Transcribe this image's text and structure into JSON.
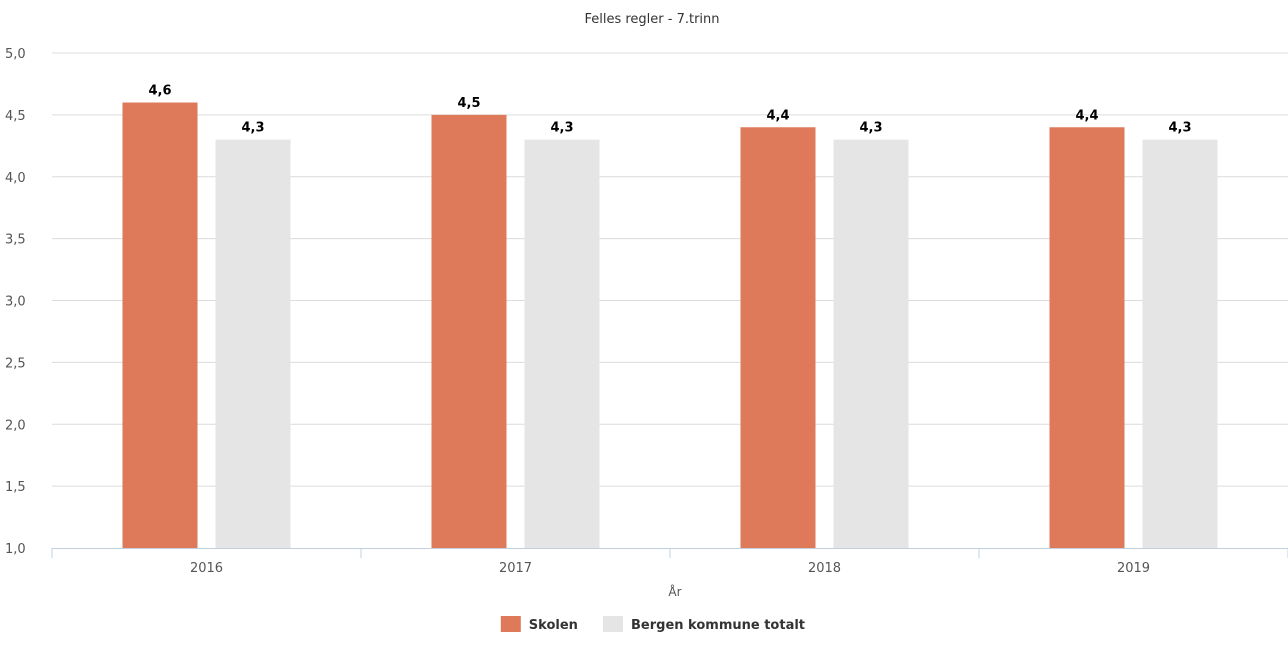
{
  "chart_data": {
    "type": "bar",
    "title": "Felles regler - 7.trinn",
    "xlabel": "År",
    "ylabel": "",
    "categories": [
      "2016",
      "2017",
      "2018",
      "2019"
    ],
    "ylim": [
      1.0,
      5.0
    ],
    "yticks": [
      "1,0",
      "1,5",
      "2,0",
      "2,5",
      "3,0",
      "3,5",
      "4,0",
      "4,5",
      "5,0"
    ],
    "grid": true,
    "legend_position": "bottom",
    "series": [
      {
        "name": "Skolen",
        "color": "#de7a5a",
        "values": [
          4.6,
          4.5,
          4.4,
          4.4
        ],
        "labels": [
          "4,6",
          "4,5",
          "4,4",
          "4,4"
        ]
      },
      {
        "name": "Bergen kommune totalt",
        "color": "#e5e5e5",
        "values": [
          4.3,
          4.3,
          4.3,
          4.3
        ],
        "labels": [
          "4,3",
          "4,3",
          "4,3",
          "4,3"
        ]
      }
    ]
  }
}
